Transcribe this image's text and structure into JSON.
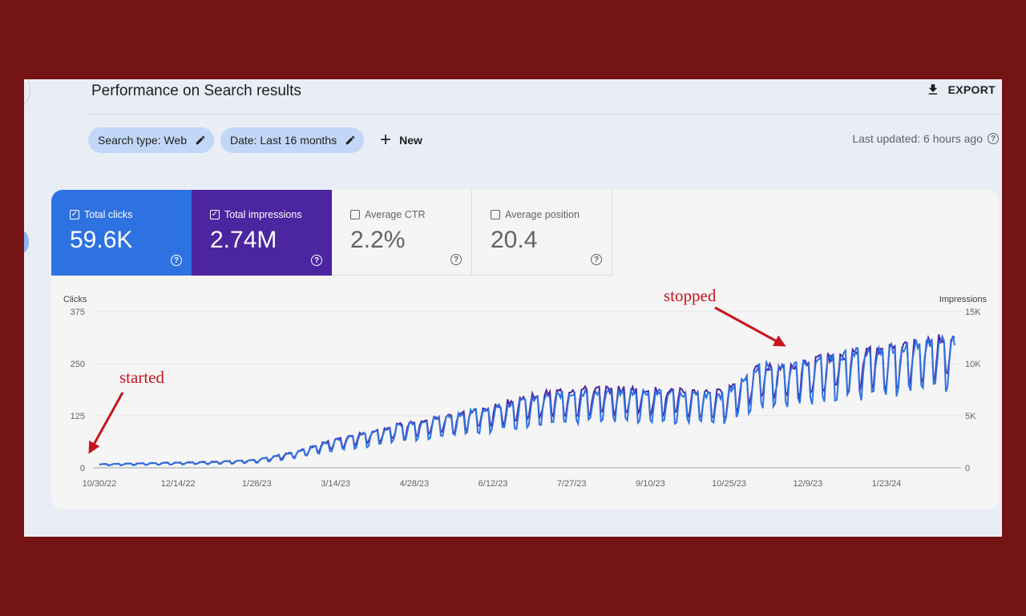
{
  "page": {
    "title": "Performance on Search results",
    "export_label": "EXPORT"
  },
  "filters": {
    "chips": [
      {
        "label": "Search type: Web",
        "icon": "pencil-icon"
      },
      {
        "label": "Date: Last 16 months",
        "icon": "pencil-icon"
      }
    ],
    "new_label": "New",
    "last_updated": "Last updated: 6 hours ago"
  },
  "metrics": [
    {
      "id": "clicks",
      "label": "Total clicks",
      "value": "59.6K",
      "checked": true,
      "color": "#2e72e1"
    },
    {
      "id": "impr",
      "label": "Total impressions",
      "value": "2.74M",
      "checked": true,
      "color": "#4c25a0"
    },
    {
      "id": "ctr",
      "label": "Average CTR",
      "value": "2.2%",
      "checked": false
    },
    {
      "id": "pos",
      "label": "Average position",
      "value": "20.4",
      "checked": false
    }
  ],
  "annotations": {
    "started": "started",
    "stopped": "stopped",
    "arrow_color": "#c8141e"
  },
  "chart_data": {
    "type": "line",
    "x_range": [
      "10/30/22",
      "2/29/24"
    ],
    "x_tick_labels": [
      "10/30/22",
      "12/14/22",
      "1/28/23",
      "3/14/23",
      "4/28/23",
      "6/12/23",
      "7/27/23",
      "9/10/23",
      "10/25/23",
      "12/9/23",
      "1/23/24"
    ],
    "left_axis": {
      "title": "Clicks",
      "ticks": [
        "0",
        "125",
        "250",
        "375"
      ],
      "range": [
        0,
        375
      ]
    },
    "right_axis": {
      "title": "Impressions",
      "ticks": [
        "0",
        "5K",
        "10K",
        "15K"
      ],
      "range": [
        0,
        15000
      ]
    },
    "grid": true,
    "weekly_samples": [
      {
        "week": "10/30/22",
        "clicks": 8,
        "impressions": 330
      },
      {
        "week": "11/20/22",
        "clicks": 10,
        "impressions": 400
      },
      {
        "week": "12/14/22",
        "clicks": 12,
        "impressions": 450
      },
      {
        "week": "1/7/23",
        "clicks": 14,
        "impressions": 550
      },
      {
        "week": "1/28/23",
        "clicks": 17,
        "impressions": 700
      },
      {
        "week": "2/20/23",
        "clicks": 35,
        "impressions": 1400
      },
      {
        "week": "3/14/23",
        "clicks": 60,
        "impressions": 2500
      },
      {
        "week": "4/5/23",
        "clicks": 80,
        "impressions": 3300
      },
      {
        "week": "4/28/23",
        "clicks": 100,
        "impressions": 4100
      },
      {
        "week": "5/20/23",
        "clicks": 115,
        "impressions": 4700
      },
      {
        "week": "6/12/23",
        "clicks": 132,
        "impressions": 5400
      },
      {
        "week": "7/5/23",
        "clicks": 150,
        "impressions": 6400
      },
      {
        "week": "7/27/23",
        "clicks": 165,
        "impressions": 7000
      },
      {
        "week": "8/20/23",
        "clicks": 168,
        "impressions": 7100
      },
      {
        "week": "9/10/23",
        "clicks": 168,
        "impressions": 7100
      },
      {
        "week": "10/2/23",
        "clicks": 165,
        "impressions": 6900
      },
      {
        "week": "10/25/23",
        "clicks": 160,
        "impressions": 6800
      },
      {
        "week": "11/15/23",
        "clicks": 225,
        "impressions": 9000
      },
      {
        "week": "12/9/23",
        "clicks": 230,
        "impressions": 9300
      },
      {
        "week": "1/1/24",
        "clicks": 250,
        "impressions": 10200
      },
      {
        "week": "1/23/24",
        "clicks": 260,
        "impressions": 10600
      },
      {
        "week": "2/15/24",
        "clicks": 275,
        "impressions": 11200
      },
      {
        "week": "2/29/24",
        "clicks": 285,
        "impressions": 12000
      }
    ],
    "series": [
      {
        "name": "Clicks",
        "color": "#2e72e1"
      },
      {
        "name": "Impressions",
        "color": "#4c25a0"
      }
    ]
  }
}
